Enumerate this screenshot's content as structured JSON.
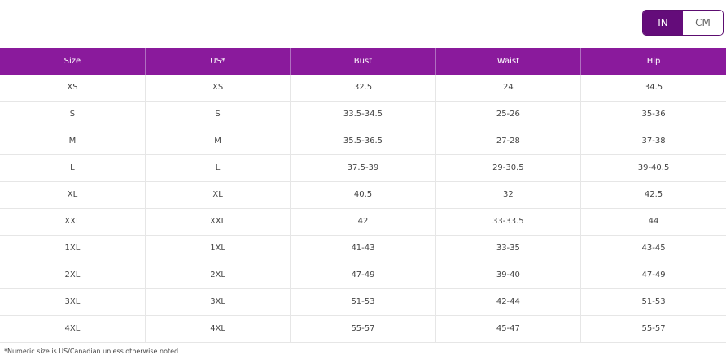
{
  "unit_toggle": {
    "options": [
      "IN",
      "CM"
    ],
    "selected": "IN",
    "accent": "#640c7a"
  },
  "table": {
    "header_color": "#8a1a9c",
    "columns": [
      "Size",
      "US*",
      "Bust",
      "Waist",
      "Hip"
    ],
    "rows": [
      [
        "XS",
        "XS",
        "32.5",
        "24",
        "34.5"
      ],
      [
        "S",
        "S",
        "33.5-34.5",
        "25-26",
        "35-36"
      ],
      [
        "M",
        "M",
        "35.5-36.5",
        "27-28",
        "37-38"
      ],
      [
        "L",
        "L",
        "37.5-39",
        "29-30.5",
        "39-40.5"
      ],
      [
        "XL",
        "XL",
        "40.5",
        "32",
        "42.5"
      ],
      [
        "XXL",
        "XXL",
        "42",
        "33-33.5",
        "44"
      ],
      [
        "1XL",
        "1XL",
        "41-43",
        "33-35",
        "43-45"
      ],
      [
        "2XL",
        "2XL",
        "47-49",
        "39-40",
        "47-49"
      ],
      [
        "3XL",
        "3XL",
        "51-53",
        "42-44",
        "51-53"
      ],
      [
        "4XL",
        "4XL",
        "55-57",
        "45-47",
        "55-57"
      ]
    ]
  },
  "footnote": "*Numeric size is US/Canadian unless otherwise noted"
}
